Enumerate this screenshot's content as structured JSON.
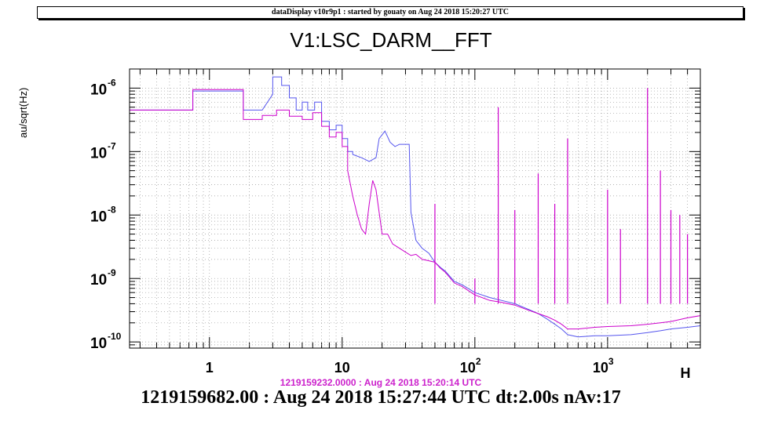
{
  "header": {
    "banner": "dataDisplay v10r9p1 : started by gouaty on Aug 24 2018 15:20:27 UTC"
  },
  "plot": {
    "title": "V1:LSC_DARM__FFT",
    "ylabel": "au/sqrt(Hz)",
    "xlabel_fragment": "H",
    "reference_time": "1219159232.0000 : Aug 24 2018 15:20:14 UTC",
    "footer": "1219159682.00 : Aug 24 2018 15:27:44 UTC dt:2.00s nAv:17"
  },
  "chart_data": {
    "type": "line",
    "x_scale": "log",
    "y_scale": "log",
    "xlim": [
      0.25,
      5000
    ],
    "ylim": [
      8e-11,
      2e-06
    ],
    "grid": true,
    "x_ticks": [
      {
        "base": "1",
        "exp": ""
      },
      {
        "base": "10",
        "exp": ""
      },
      {
        "base": "10",
        "exp": "2"
      },
      {
        "base": "10",
        "exp": "3"
      }
    ],
    "y_ticks": [
      {
        "base": "10",
        "exp": "-6"
      },
      {
        "base": "10",
        "exp": "-7"
      },
      {
        "base": "10",
        "exp": "-8"
      },
      {
        "base": "10",
        "exp": "-9"
      },
      {
        "base": "10",
        "exp": "-10"
      }
    ],
    "series": [
      {
        "color": "#5555ee",
        "points": [
          [
            0.25,
            4.5e-07
          ],
          [
            0.75,
            4.5e-07
          ],
          [
            0.75,
            9e-07
          ],
          [
            1.8,
            9e-07
          ],
          [
            1.8,
            4.5e-07
          ],
          [
            2.5,
            4.5e-07
          ],
          [
            3,
            8e-07
          ],
          [
            3,
            1.5e-06
          ],
          [
            3.5,
            1.5e-06
          ],
          [
            3.5,
            1.1e-06
          ],
          [
            4,
            1.1e-06
          ],
          [
            4,
            7e-07
          ],
          [
            4.5,
            7e-07
          ],
          [
            4.5,
            4.5e-07
          ],
          [
            5,
            4.5e-07
          ],
          [
            5,
            6e-07
          ],
          [
            5.5,
            6e-07
          ],
          [
            5.5,
            4.5e-07
          ],
          [
            6.2,
            4.5e-07
          ],
          [
            6.2,
            6e-07
          ],
          [
            7,
            6e-07
          ],
          [
            7,
            3e-07
          ],
          [
            8,
            3e-07
          ],
          [
            8,
            2.2e-07
          ],
          [
            9,
            2.2e-07
          ],
          [
            9,
            2.6e-07
          ],
          [
            10,
            2.6e-07
          ],
          [
            10,
            1.6e-07
          ],
          [
            11,
            1.6e-07
          ],
          [
            11,
            1e-07
          ],
          [
            12,
            1e-07
          ],
          [
            12,
            9e-08
          ],
          [
            14,
            8e-08
          ],
          [
            16,
            7e-08
          ],
          [
            18,
            8e-08
          ],
          [
            19,
            1.6e-07
          ],
          [
            21,
            2.1e-07
          ],
          [
            23,
            1.4e-07
          ],
          [
            25,
            1.2e-07
          ],
          [
            27,
            1.3e-07
          ],
          [
            30,
            1.3e-07
          ],
          [
            32,
            1.3e-07
          ],
          [
            33,
            1.1e-08
          ],
          [
            36,
            4e-09
          ],
          [
            40,
            3e-09
          ],
          [
            45,
            2.5e-09
          ],
          [
            50,
            1.8e-09
          ],
          [
            55,
            1.5e-09
          ],
          [
            60,
            1.3e-09
          ],
          [
            70,
            9e-10
          ],
          [
            80,
            8e-10
          ],
          [
            100,
            6e-10
          ],
          [
            130,
            5e-10
          ],
          [
            160,
            4.5e-10
          ],
          [
            200,
            4e-10
          ],
          [
            250,
            3.3e-10
          ],
          [
            300,
            2.8e-10
          ],
          [
            350,
            2.3e-10
          ],
          [
            400,
            1.9e-10
          ],
          [
            450,
            1.6e-10
          ],
          [
            500,
            1.3e-10
          ],
          [
            600,
            1.2e-10
          ],
          [
            800,
            1.25e-10
          ],
          [
            1000,
            1.25e-10
          ],
          [
            1500,
            1.3e-10
          ],
          [
            2000,
            1.4e-10
          ],
          [
            2500,
            1.5e-10
          ],
          [
            3000,
            1.6e-10
          ],
          [
            4000,
            1.7e-10
          ],
          [
            5000,
            1.8e-10
          ]
        ]
      },
      {
        "color": "#cc00cc",
        "points": [
          [
            0.25,
            4.5e-07
          ],
          [
            0.75,
            4.5e-07
          ],
          [
            0.75,
            9.5e-07
          ],
          [
            1.8,
            9.5e-07
          ],
          [
            1.8,
            3.2e-07
          ],
          [
            2.5,
            3.2e-07
          ],
          [
            2.5,
            3.7e-07
          ],
          [
            3.2,
            3.7e-07
          ],
          [
            3.2,
            4.5e-07
          ],
          [
            4,
            4.5e-07
          ],
          [
            4,
            3.6e-07
          ],
          [
            5,
            3.6e-07
          ],
          [
            5,
            3.2e-07
          ],
          [
            6,
            3.2e-07
          ],
          [
            6,
            4.1e-07
          ],
          [
            7,
            4.1e-07
          ],
          [
            7,
            2.5e-07
          ],
          [
            8,
            2.5e-07
          ],
          [
            8,
            1.7e-07
          ],
          [
            9,
            1.7e-07
          ],
          [
            9,
            2e-07
          ],
          [
            10,
            2e-07
          ],
          [
            10,
            1.2e-07
          ],
          [
            11,
            1.2e-07
          ],
          [
            11,
            5e-08
          ],
          [
            12,
            2e-08
          ],
          [
            13,
            1e-08
          ],
          [
            14,
            6e-09
          ],
          [
            15,
            5e-09
          ],
          [
            16,
            1.5e-08
          ],
          [
            17,
            3.5e-08
          ],
          [
            18,
            2.5e-08
          ],
          [
            19,
            1.1e-08
          ],
          [
            20,
            5e-09
          ],
          [
            22,
            5e-09
          ],
          [
            24,
            3.5e-09
          ],
          [
            27,
            3e-09
          ],
          [
            30,
            2.6e-09
          ],
          [
            33,
            2.3e-09
          ],
          [
            36,
            2.4e-09
          ],
          [
            40,
            2e-09
          ],
          [
            45,
            1.9e-09
          ],
          [
            50,
            1.8e-09
          ],
          [
            55,
            1.45e-09
          ],
          [
            60,
            1.25e-09
          ],
          [
            70,
            8.5e-10
          ],
          [
            80,
            7.5e-10
          ],
          [
            100,
            5.5e-10
          ],
          [
            130,
            4.5e-10
          ],
          [
            160,
            4.2e-10
          ],
          [
            200,
            3.8e-10
          ],
          [
            250,
            3.2e-10
          ],
          [
            300,
            2.8e-10
          ],
          [
            350,
            2.5e-10
          ],
          [
            400,
            2.2e-10
          ],
          [
            450,
            1.9e-10
          ],
          [
            500,
            1.6e-10
          ],
          [
            600,
            1.6e-10
          ],
          [
            800,
            1.7e-10
          ],
          [
            1000,
            1.75e-10
          ],
          [
            1500,
            1.8e-10
          ],
          [
            2000,
            1.9e-10
          ],
          [
            2500,
            2e-10
          ],
          [
            3000,
            2.1e-10
          ],
          [
            4000,
            2.4e-10
          ],
          [
            5000,
            2.6e-10
          ]
        ]
      }
    ],
    "spikes": [
      {
        "x": 50,
        "y": 1.5e-08
      },
      {
        "x": 100,
        "y": 1e-09
      },
      {
        "x": 150,
        "y": 5e-07
      },
      {
        "x": 200,
        "y": 1.2e-08
      },
      {
        "x": 300,
        "y": 4.5e-08
      },
      {
        "x": 400,
        "y": 1.5e-08
      },
      {
        "x": 500,
        "y": 1.6e-07
      },
      {
        "x": 1000,
        "y": 2.5e-08
      },
      {
        "x": 1250,
        "y": 6e-09
      },
      {
        "x": 2000,
        "y": 1e-06
      },
      {
        "x": 2500,
        "y": 5e-08
      },
      {
        "x": 3000,
        "y": 1.2e-08
      },
      {
        "x": 3500,
        "y": 1e-08
      },
      {
        "x": 4000,
        "y": 5e-09
      }
    ]
  }
}
